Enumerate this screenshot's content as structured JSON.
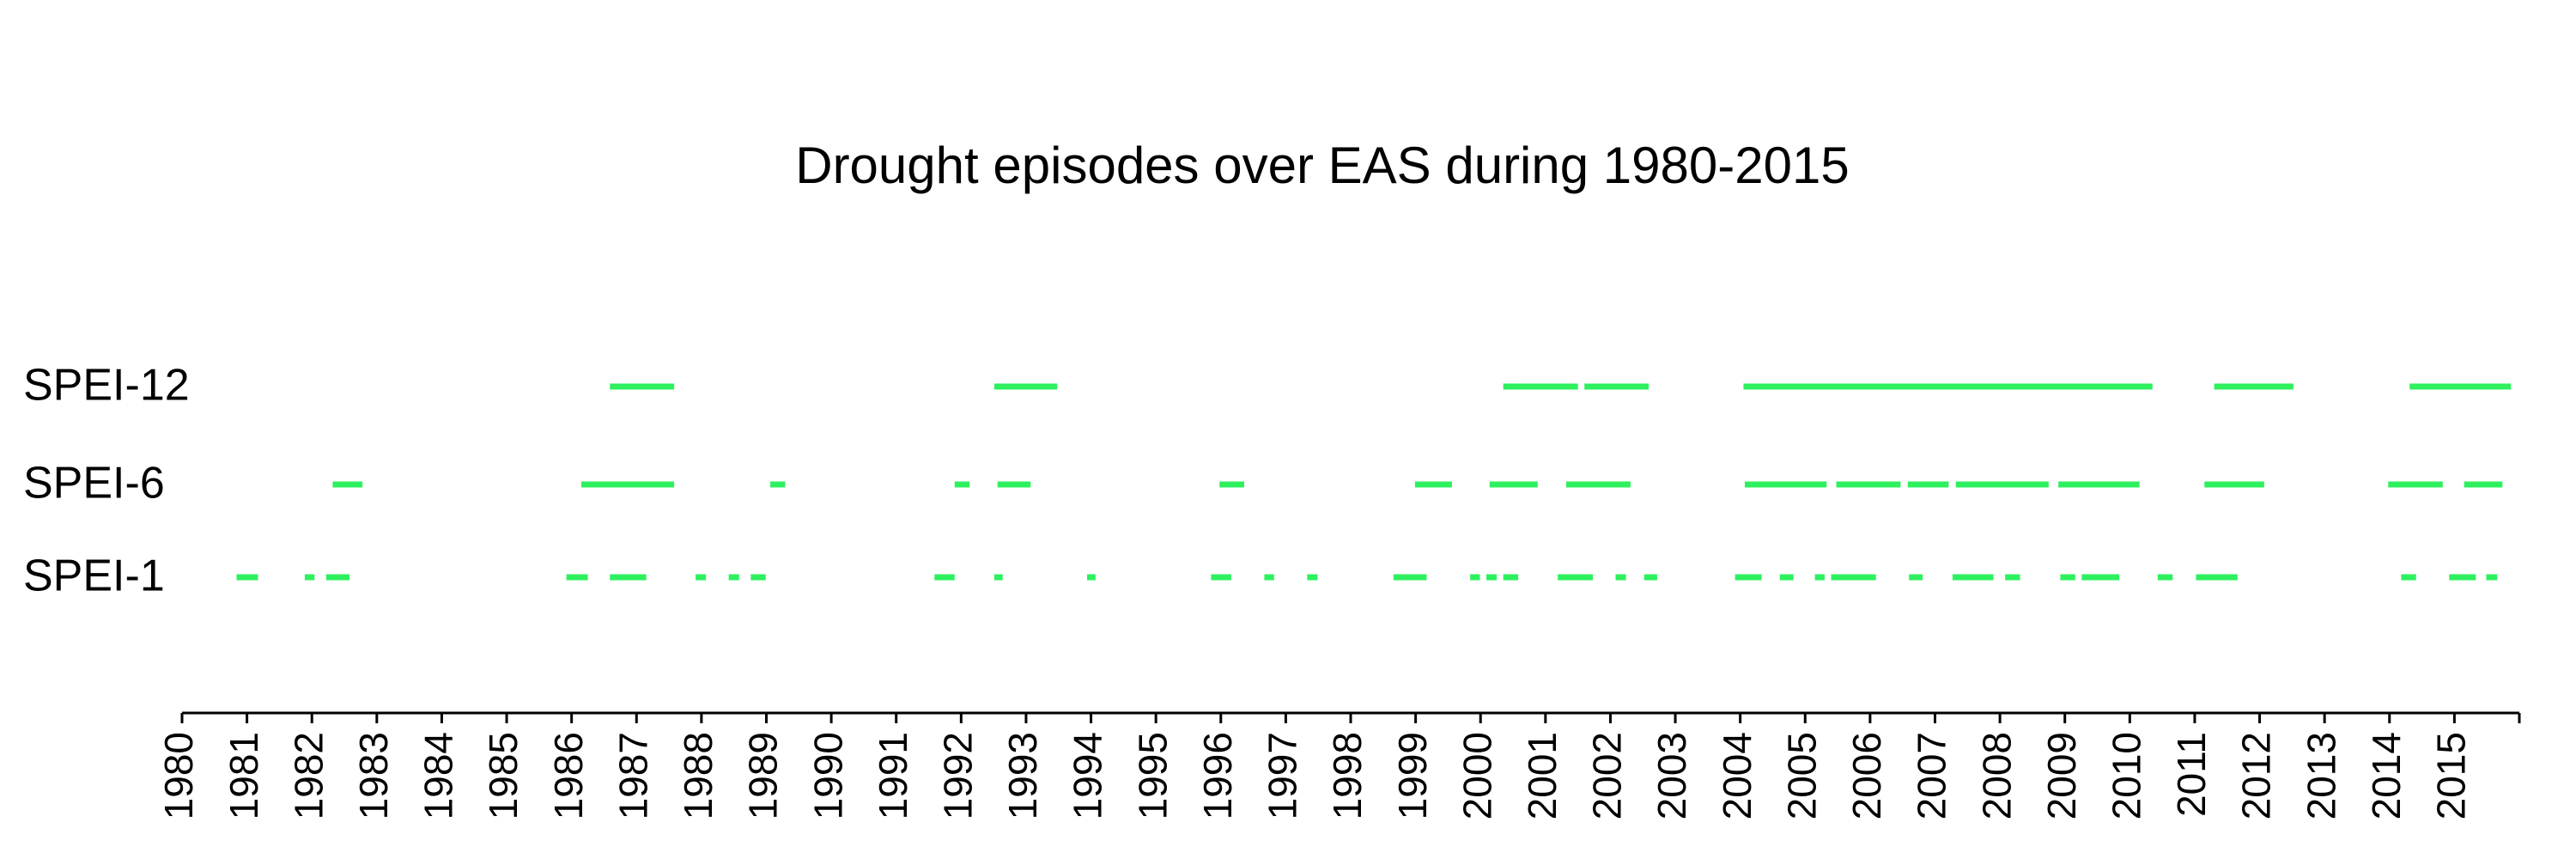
{
  "chart_data": {
    "type": "timeline",
    "title": "Drought episodes over EAS during 1980-2015",
    "xlim": [
      1980,
      2016
    ],
    "xticks": [
      1980,
      1981,
      1982,
      1983,
      1984,
      1985,
      1986,
      1987,
      1988,
      1989,
      1990,
      1991,
      1992,
      1993,
      1994,
      1995,
      1996,
      1997,
      1998,
      1999,
      2000,
      2001,
      2002,
      2003,
      2004,
      2005,
      2006,
      2007,
      2008,
      2009,
      2010,
      2011,
      2012,
      2013,
      2014,
      2015
    ],
    "series": [
      {
        "name": "SPEI-12",
        "color": "#2ef05f",
        "episodes": [
          [
            1986.59,
            1987.58
          ],
          [
            1992.51,
            1993.48
          ],
          [
            2000.35,
            2001.5
          ],
          [
            2001.6,
            2002.59
          ],
          [
            2004.05,
            2010.35
          ],
          [
            2011.3,
            2012.52
          ],
          [
            2014.31,
            2015.87
          ]
        ]
      },
      {
        "name": "SPEI-6",
        "color": "#2ef05f",
        "episodes": [
          [
            1982.32,
            1982.78
          ],
          [
            1986.15,
            1987.58
          ],
          [
            1989.06,
            1989.29
          ],
          [
            1991.9,
            1992.13
          ],
          [
            1992.56,
            1993.07
          ],
          [
            1995.98,
            1996.36
          ],
          [
            1998.99,
            1999.56
          ],
          [
            2000.14,
            2000.88
          ],
          [
            2001.32,
            2002.31
          ],
          [
            2004.07,
            2005.33
          ],
          [
            2005.48,
            2006.47
          ],
          [
            2006.58,
            2007.21
          ],
          [
            2007.32,
            2008.75
          ],
          [
            2008.9,
            2010.15
          ],
          [
            2011.15,
            2012.07
          ],
          [
            2013.98,
            2014.82
          ],
          [
            2015.15,
            2015.74
          ]
        ]
      },
      {
        "name": "SPEI-1",
        "color": "#2ef05f",
        "episodes": [
          [
            1980.84,
            1981.17
          ],
          [
            1981.89,
            1982.04
          ],
          [
            1982.22,
            1982.58
          ],
          [
            1985.92,
            1986.25
          ],
          [
            1986.59,
            1987.15
          ],
          [
            1987.91,
            1988.07
          ],
          [
            1988.42,
            1988.58
          ],
          [
            1988.76,
            1988.99
          ],
          [
            1991.59,
            1991.9
          ],
          [
            1992.51,
            1992.64
          ],
          [
            1993.94,
            1994.07
          ],
          [
            1995.85,
            1996.16
          ],
          [
            1996.67,
            1996.82
          ],
          [
            1997.33,
            1997.49
          ],
          [
            1998.66,
            1999.17
          ],
          [
            1999.84,
            1999.99
          ],
          [
            2000.09,
            2000.25
          ],
          [
            2000.35,
            2000.58
          ],
          [
            2001.19,
            2001.73
          ],
          [
            2002.08,
            2002.24
          ],
          [
            2002.52,
            2002.72
          ],
          [
            2003.92,
            2004.33
          ],
          [
            2004.61,
            2004.82
          ],
          [
            2005.15,
            2005.3
          ],
          [
            2005.4,
            2006.09
          ],
          [
            2006.6,
            2006.81
          ],
          [
            2007.27,
            2007.9
          ],
          [
            2008.08,
            2008.31
          ],
          [
            2008.93,
            2009.16
          ],
          [
            2009.26,
            2009.84
          ],
          [
            2010.43,
            2010.66
          ],
          [
            2011.02,
            2011.66
          ],
          [
            2014.18,
            2014.41
          ],
          [
            2014.92,
            2015.33
          ],
          [
            2015.49,
            2015.66
          ]
        ]
      }
    ]
  }
}
